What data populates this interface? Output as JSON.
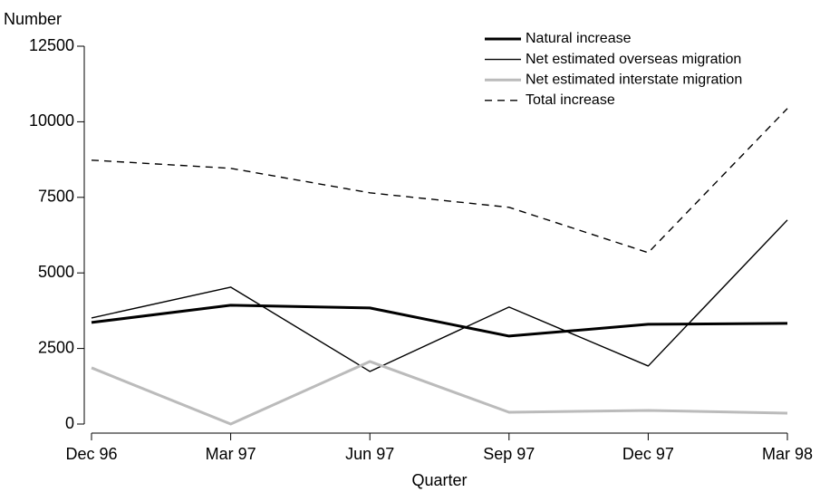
{
  "chart_data": {
    "type": "line",
    "y_label": "Number",
    "x_label": "Quarter",
    "categories": [
      "Dec 96",
      "Mar 97",
      "Jun 97",
      "Sep 97",
      "Dec 97",
      "Mar 98"
    ],
    "ylim": [
      0,
      12500
    ],
    "yticks": [
      0,
      2500,
      5000,
      7500,
      10000,
      12500
    ],
    "legend": "top-right",
    "series": [
      {
        "name": "Natural increase",
        "color": "#000000",
        "width": 3,
        "dashed": false,
        "values": [
          3360,
          3930,
          3840,
          2910,
          3300,
          3330
        ]
      },
      {
        "name": "Net estimated overseas migration",
        "color": "#000000",
        "width": 1.4,
        "dashed": false,
        "values": [
          3510,
          4530,
          1740,
          3870,
          1920,
          6750
        ]
      },
      {
        "name": "Net estimated interstate migration",
        "color": "#bbbbbb",
        "width": 3,
        "dashed": false,
        "values": [
          1860,
          0,
          2070,
          390,
          450,
          360
        ]
      },
      {
        "name": "Total increase",
        "color": "#000000",
        "width": 1.4,
        "dashed": true,
        "values": [
          8730,
          8460,
          7650,
          7170,
          5670,
          10440
        ]
      }
    ]
  }
}
